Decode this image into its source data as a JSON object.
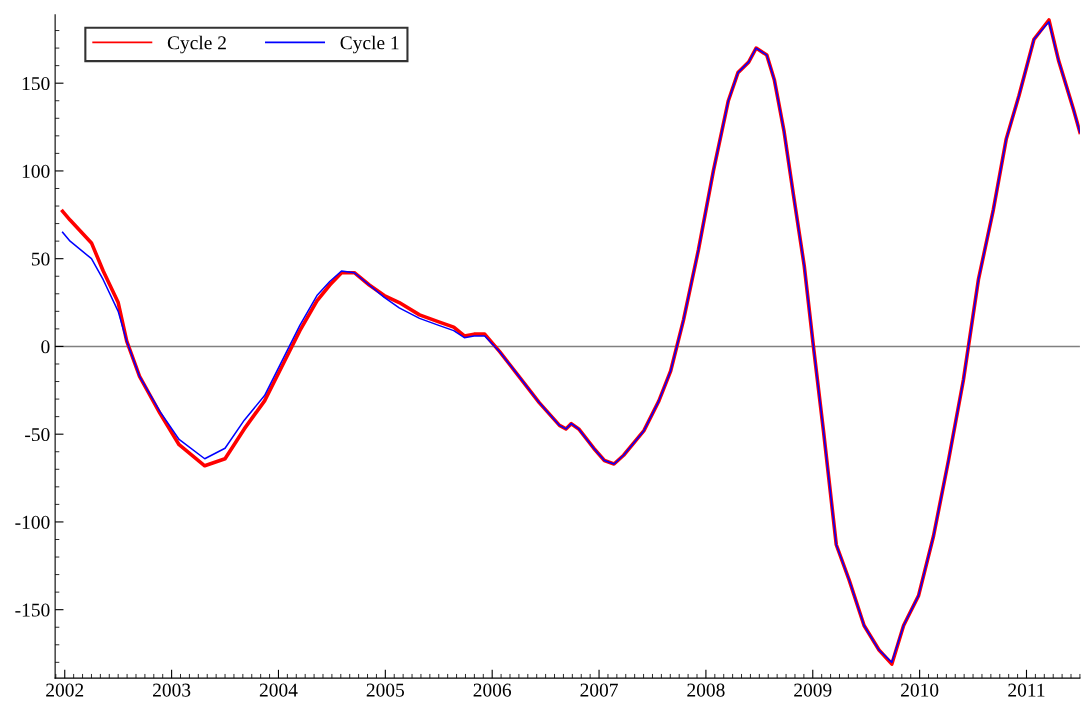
{
  "chart_data": {
    "type": "line",
    "x": [
      2001.98,
      2002.05,
      2002.25,
      2002.36,
      2002.5,
      2002.58,
      2002.7,
      2002.89,
      2003.07,
      2003.31,
      2003.5,
      2003.68,
      2003.87,
      2004.06,
      2004.2,
      2004.36,
      2004.48,
      2004.59,
      2004.71,
      2004.85,
      2004.99,
      2005.13,
      2005.32,
      2005.5,
      2005.64,
      2005.74,
      2005.83,
      2005.93,
      2006.07,
      2006.25,
      2006.44,
      2006.63,
      2006.69,
      2006.74,
      2006.81,
      2006.95,
      2007.05,
      2007.14,
      2007.23,
      2007.42,
      2007.56,
      2007.67,
      2007.79,
      2007.93,
      2008.07,
      2008.21,
      2008.3,
      2008.4,
      2008.47,
      2008.57,
      2008.64,
      2008.73,
      2008.82,
      2008.92,
      2009.01,
      2009.1,
      2009.22,
      2009.34,
      2009.48,
      2009.62,
      2009.74,
      2009.85,
      2009.99,
      2010.13,
      2010.27,
      2010.41,
      2010.55,
      2010.69,
      2010.81,
      2010.93,
      2011.07,
      2011.21,
      2011.3,
      2011.44,
      2011.5
    ],
    "series": [
      {
        "name": "Cycle 2",
        "color": "#ff0000",
        "values": [
          77,
          72,
          59,
          43,
          25,
          3,
          -17,
          -38,
          -56,
          -68,
          -64,
          -47,
          -31,
          -8,
          9,
          26,
          35,
          42,
          42,
          35,
          29,
          25,
          18,
          14,
          11,
          6,
          7,
          7,
          -3,
          -17,
          -32,
          -45,
          -47,
          -44,
          -47,
          -58,
          -65,
          -67,
          -62,
          -48,
          -31,
          -14,
          15,
          55,
          100,
          140,
          156,
          162,
          170,
          166,
          152,
          123,
          86,
          46,
          -2,
          -48,
          -113,
          -133,
          -159,
          -173,
          -181,
          -159,
          -142,
          -108,
          -65,
          -19,
          38,
          78,
          118,
          143,
          175,
          186,
          163,
          135,
          122
        ]
      },
      {
        "name": "Cycle 1",
        "color": "#0000ff",
        "values": [
          65,
          60,
          50,
          38,
          20,
          3,
          -17,
          -37,
          -53,
          -64,
          -58,
          -42,
          -28,
          -5,
          12,
          29,
          37,
          43,
          42,
          35,
          28,
          22,
          16,
          12,
          9,
          5,
          6,
          6,
          -3,
          -17,
          -32,
          -45,
          -47,
          -44,
          -47,
          -58,
          -65,
          -67,
          -62,
          -48,
          -31,
          -14,
          15,
          55,
          100,
          140,
          156,
          162,
          170,
          166,
          152,
          123,
          86,
          46,
          -2,
          -48,
          -113,
          -133,
          -159,
          -173,
          -180,
          -159,
          -142,
          -108,
          -65,
          -19,
          38,
          78,
          118,
          143,
          175,
          185,
          163,
          135,
          122
        ]
      }
    ],
    "xlim": [
      2001.91,
      2011.5
    ],
    "xticks": [
      2002,
      2003,
      2004,
      2005,
      2006,
      2007,
      2008,
      2009,
      2010,
      2011
    ],
    "ylim": [
      -189,
      189
    ],
    "yticks": [
      -150,
      -100,
      -50,
      0,
      50,
      100,
      150
    ],
    "ref_lines": [
      {
        "axis": "y",
        "value": 0,
        "color": "#808080"
      }
    ],
    "legend": "top left",
    "grid": false,
    "marker": "none",
    "line_style": "solid"
  }
}
